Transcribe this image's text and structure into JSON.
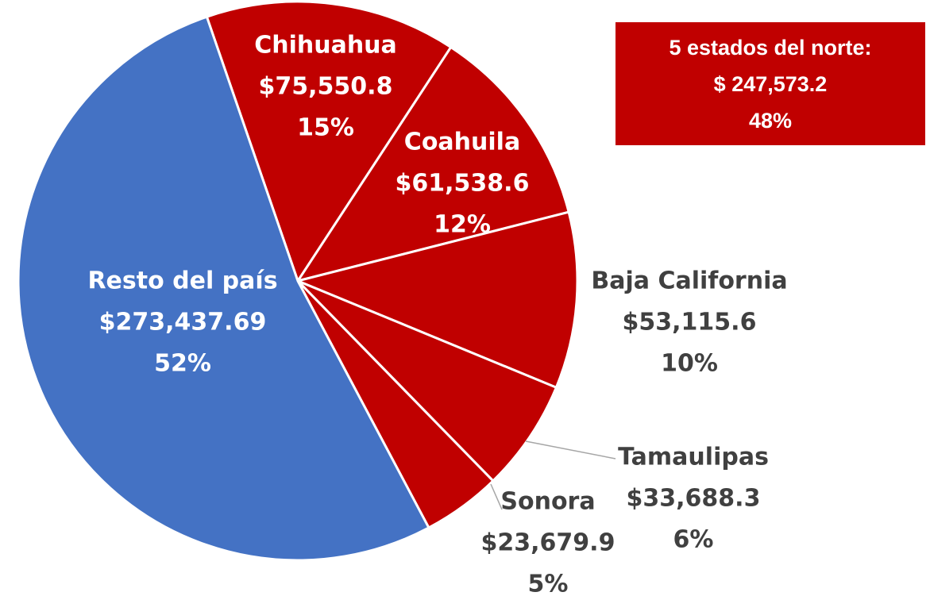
{
  "chart_data": {
    "type": "pie",
    "categories": [
      "Chihuahua",
      "Coahuila",
      "Baja California",
      "Tamaulipas",
      "Sonora",
      "Resto del país"
    ],
    "values": [
      75550.8,
      61538.6,
      53115.6,
      33688.3,
      23679.9,
      273437.69
    ],
    "value_labels": [
      "$75,550.8",
      "$61,538.6",
      "$53,115.6",
      "$33,688.3",
      "$23,679.9",
      "$273,437.69"
    ],
    "percent_labels": [
      "15%",
      "12%",
      "10%",
      "6%",
      "5%",
      "52%"
    ],
    "colors": [
      "#C00000",
      "#C00000",
      "#C00000",
      "#C00000",
      "#C00000",
      "#4472C4"
    ],
    "annotation": {
      "title": "5 estados del norte:",
      "value": "$  247,573.2",
      "percent": "48%"
    }
  }
}
